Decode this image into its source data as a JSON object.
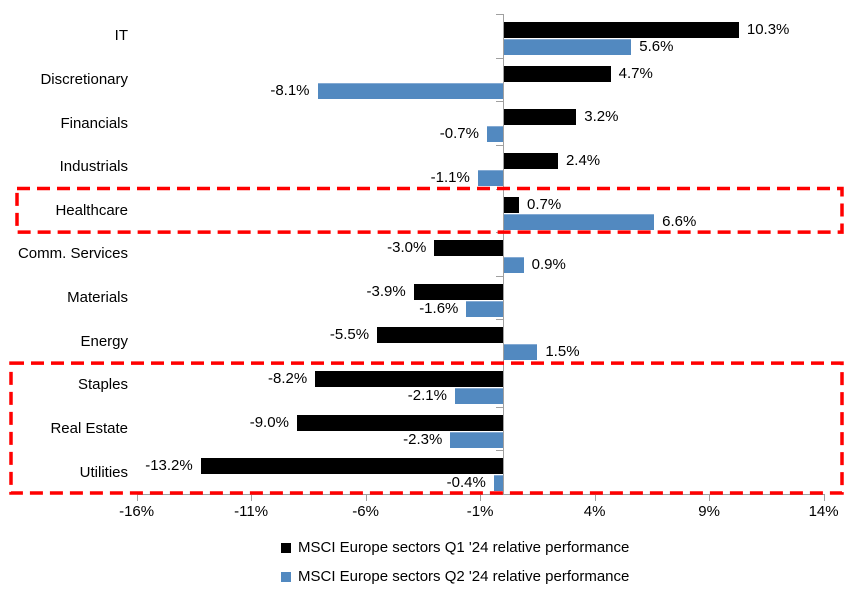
{
  "chart_data": {
    "type": "bar",
    "orientation": "horizontal",
    "title": "",
    "categories": [
      "IT",
      "Discretionary",
      "Financials",
      "Industrials",
      "Healthcare",
      "Comm. Services",
      "Materials",
      "Energy",
      "Staples",
      "Real Estate",
      "Utilities"
    ],
    "series": [
      {
        "name": "MSCI Europe sectors Q1 '24 relative performance",
        "color": "#000000",
        "values": [
          10.3,
          4.7,
          3.2,
          2.4,
          0.7,
          -3.0,
          -3.9,
          -5.5,
          -8.2,
          -9.0,
          -13.2
        ],
        "labels": [
          "10.3%",
          "4.7%",
          "3.2%",
          "2.4%",
          "0.7%",
          "-3.0%",
          "-3.9%",
          "-5.5%",
          "-8.2%",
          "-9.0%",
          "-13.2%"
        ]
      },
      {
        "name": "MSCI Europe sectors Q2 '24 relative performance",
        "color": "#5289c0",
        "values": [
          5.6,
          -8.1,
          -0.7,
          -1.1,
          6.6,
          0.9,
          -1.6,
          1.5,
          -2.1,
          -2.3,
          -0.4
        ],
        "labels": [
          "5.6%",
          "-8.1%",
          "-0.7%",
          "-1.1%",
          "6.6%",
          "0.9%",
          "-1.6%",
          "1.5%",
          "-2.1%",
          "-2.3%",
          "-0.4%"
        ]
      }
    ],
    "x_axis": {
      "min": -16,
      "max": 14,
      "tick_values": [
        -16,
        -11,
        -6,
        -1,
        4,
        9,
        14
      ],
      "tick_labels": [
        "-16%",
        "-11%",
        "-6%",
        "-1%",
        "4%",
        "9%",
        "14%"
      ]
    },
    "legend_position": "bottom",
    "grid": false,
    "highlight_boxes": [
      {
        "categories": [
          "Healthcare"
        ],
        "first_index": 4,
        "last_index": 4
      },
      {
        "categories": [
          "Staples",
          "Real Estate",
          "Utilities"
        ],
        "first_index": 8,
        "last_index": 10
      }
    ],
    "colors": {
      "q1_bar": "#000000",
      "q2_bar": "#5289c0",
      "highlight_box": "#ff0000",
      "axis": "#a0a0a0",
      "text": "#000000"
    }
  }
}
